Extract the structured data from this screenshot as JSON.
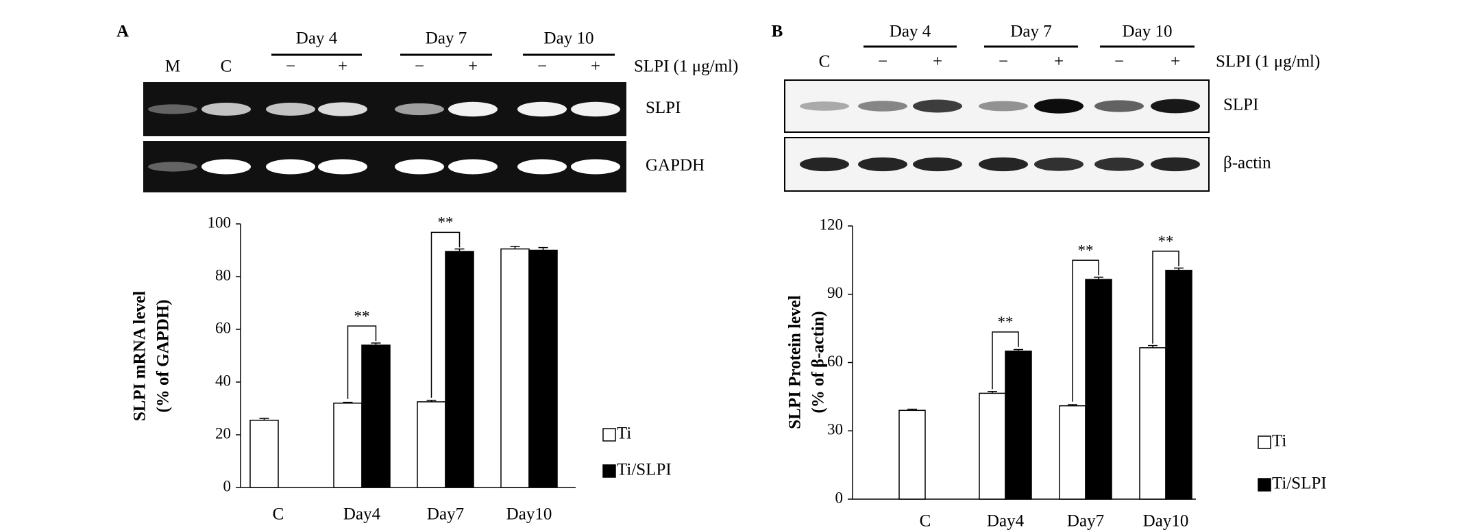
{
  "panels": [
    {
      "label": "A",
      "lanes": [
        "M",
        "C",
        "−",
        "+",
        "−",
        "+",
        "−",
        "+"
      ],
      "groups": [
        "Day 4",
        "Day 7",
        "Day 10"
      ],
      "treatment": "SLPI (1 μg/ml)",
      "rows": [
        "SLPI",
        "GAPDH"
      ]
    },
    {
      "label": "B",
      "lanes": [
        "C",
        "−",
        "+",
        "−",
        "+",
        "−",
        "+"
      ],
      "groups": [
        "Day 4",
        "Day 7",
        "Day 10"
      ],
      "treatment": "SLPI (1 μg/ml)",
      "rows": [
        "SLPI",
        "β-actin"
      ]
    }
  ],
  "chart_data": [
    {
      "type": "bar",
      "y_label": [
        "SLPI mRNA level",
        "(% of GAPDH)"
      ],
      "categories": [
        "C",
        "Day4",
        "Day7",
        "Day10"
      ],
      "series": [
        {
          "name": "Ti",
          "color": "#ffffff",
          "values": [
            25.5,
            32,
            32.5,
            90.5
          ],
          "errors": [
            0.7,
            0.3,
            0.6,
            1
          ]
        },
        {
          "name": "Ti/SLPI",
          "color": "#000000",
          "values": [
            null,
            54,
            89.5,
            90
          ],
          "errors": [
            null,
            0.8,
            1,
            1
          ]
        }
      ],
      "ylim": [
        0,
        100
      ],
      "yticks": [
        0,
        20,
        40,
        60,
        80,
        100
      ],
      "annotations": [
        {
          "category": "Day4",
          "text": "**"
        },
        {
          "category": "Day7",
          "text": "**"
        }
      ]
    },
    {
      "type": "bar",
      "y_label": [
        "SLPI Protein level",
        "(% of β-actin)"
      ],
      "categories": [
        "C",
        "Day4",
        "Day7",
        "Day10"
      ],
      "series": [
        {
          "name": "Ti",
          "color": "#ffffff",
          "values": [
            39,
            46.5,
            41,
            66.5
          ],
          "errors": [
            0.5,
            0.8,
            0.5,
            1
          ]
        },
        {
          "name": "Ti/SLPI",
          "color": "#000000",
          "values": [
            null,
            65,
            96.5,
            100.5
          ],
          "errors": [
            null,
            0.7,
            1,
            1
          ]
        }
      ],
      "ylim": [
        0,
        120
      ],
      "yticks": [
        0,
        30,
        60,
        90,
        120
      ],
      "annotations": [
        {
          "category": "Day4",
          "text": "**"
        },
        {
          "category": "Day7",
          "text": "**"
        },
        {
          "category": "Day10",
          "text": "**"
        }
      ]
    }
  ]
}
